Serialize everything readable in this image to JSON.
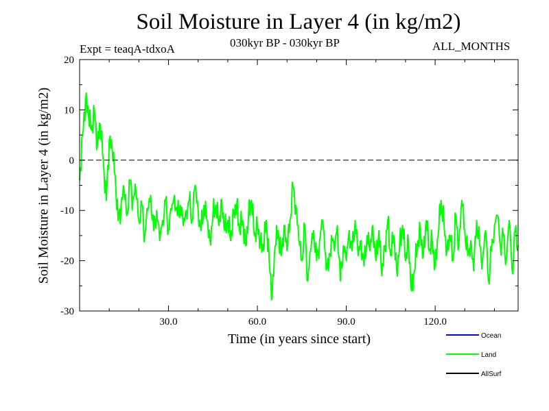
{
  "chart_data": {
    "type": "line",
    "title": "Soil Moisture in Layer 4 (in kg/m2)",
    "experiment_label": "Expt = teaqA-tdxoA",
    "period_label": "030kyr BP - 030kyr BP",
    "months_label": "ALL_MONTHS",
    "xlabel": "Time (in years since start)",
    "ylabel": "Soil Moisture in Layer 4 (in kg/m2)",
    "xlim": [
      0,
      148
    ],
    "ylim": [
      -30,
      20
    ],
    "x_ticks": [
      {
        "value": 30,
        "label": "30.0"
      },
      {
        "value": 60,
        "label": "60.0"
      },
      {
        "value": 90,
        "label": "90.0"
      },
      {
        "value": 120,
        "label": "120.0"
      }
    ],
    "y_ticks": [
      {
        "value": 20,
        "label": "20"
      },
      {
        "value": 10,
        "label": "10"
      },
      {
        "value": 0,
        "label": "0"
      },
      {
        "value": -10,
        "label": "-10"
      },
      {
        "value": -20,
        "label": "-20"
      },
      {
        "value": -30,
        "label": "-30"
      }
    ],
    "reference_line": {
      "value": 0,
      "style": "dashed"
    },
    "legend": [
      {
        "name": "Ocean",
        "color": "#0000ff"
      },
      {
        "name": "Land",
        "color": "#00ff00"
      },
      {
        "name": "AllSurf",
        "color": "#000000"
      }
    ],
    "series": [
      {
        "name": "Land",
        "color": "#00ff00",
        "x": [
          0,
          1,
          2,
          3,
          4,
          5,
          6,
          7,
          8,
          9,
          10,
          11,
          12,
          13,
          14,
          15,
          16,
          17,
          18,
          19,
          20,
          21,
          22,
          23,
          24,
          25,
          26,
          27,
          28,
          29,
          30,
          31,
          32,
          33,
          34,
          35,
          36,
          37,
          38,
          39,
          40,
          41,
          42,
          43,
          44,
          45,
          46,
          47,
          48,
          49,
          50,
          51,
          52,
          53,
          54,
          55,
          56,
          57,
          58,
          59,
          60,
          61,
          62,
          63,
          64,
          65,
          66,
          67,
          68,
          69,
          70,
          71,
          72,
          73,
          74,
          75,
          76,
          77,
          78,
          79,
          80,
          81,
          82,
          83,
          84,
          85,
          86,
          87,
          88,
          89,
          90,
          91,
          92,
          93,
          94,
          95,
          96,
          97,
          98,
          99,
          100,
          101,
          102,
          103,
          104,
          105,
          106,
          107,
          108,
          109,
          110,
          111,
          112,
          113,
          114,
          115,
          116,
          117,
          118,
          119,
          120,
          121,
          122,
          123,
          124,
          125,
          126,
          127,
          128,
          129,
          130,
          131,
          132,
          133,
          134,
          135,
          136,
          137,
          138,
          139,
          140,
          141,
          142,
          143,
          144,
          145,
          146,
          147,
          148
        ],
        "values": [
          -4,
          5,
          12,
          9,
          6,
          10,
          3,
          7,
          0,
          -8,
          4,
          2,
          -3,
          -12,
          -9,
          -6,
          -11,
          -4,
          -8,
          -6,
          -12,
          -9,
          -15,
          -10,
          -7,
          -14,
          -10,
          -16,
          -12,
          -8,
          -14,
          -10,
          -7,
          -11,
          -9,
          -13,
          -10,
          -8,
          -12,
          -5,
          -10,
          -14,
          -9,
          -12,
          -16,
          -11,
          -9,
          -13,
          -8,
          -14,
          -12,
          -16,
          -10,
          -9,
          -14,
          -12,
          -17,
          -11,
          -8,
          -15,
          -13,
          -16,
          -18,
          -12,
          -20,
          -27,
          -17,
          -14,
          -19,
          -13,
          -18,
          -12,
          -5,
          -9,
          -16,
          -20,
          -13,
          -24,
          -18,
          -14,
          -20,
          -16,
          -12,
          -19,
          -22,
          -15,
          -18,
          -13,
          -24,
          -17,
          -20,
          -14,
          -18,
          -12,
          -19,
          -16,
          -21,
          -15,
          -18,
          -13,
          -20,
          -14,
          -23,
          -17,
          -12,
          -19,
          -15,
          -22,
          -17,
          -13,
          -20,
          -16,
          -26,
          -22,
          -17,
          -14,
          -19,
          -12,
          -18,
          -16,
          -21,
          -15,
          -8,
          -13,
          -18,
          -15,
          -20,
          -11,
          -17,
          -8,
          -14,
          -19,
          -16,
          -22,
          -12,
          -17,
          -20,
          -14,
          -24,
          -18,
          -13,
          -11,
          -17,
          -15,
          -20,
          -12,
          -22,
          -14,
          -17
        ]
      }
    ]
  }
}
